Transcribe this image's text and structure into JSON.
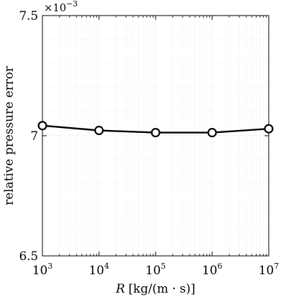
{
  "chart_data": {
    "type": "line",
    "title": "",
    "xlabel_var": "R",
    "xlabel_unit": "[kg/(m · s)]",
    "ylabel": "relative pressure error",
    "x_scale": "log",
    "xlim": [
      1000,
      10000000
    ],
    "ylim": [
      6.5,
      7.5
    ],
    "y_multiplier_base": "×10",
    "y_multiplier_exp": "−3",
    "grid": true,
    "minor_grid": true,
    "x_ticks": [
      {
        "value": 1000,
        "base": "10",
        "exp": "3"
      },
      {
        "value": 10000,
        "base": "10",
        "exp": "4"
      },
      {
        "value": 100000,
        "base": "10",
        "exp": "5"
      },
      {
        "value": 1000000,
        "base": "10",
        "exp": "6"
      },
      {
        "value": 10000000,
        "base": "10",
        "exp": "7"
      }
    ],
    "y_ticks": [
      {
        "value": 6.5,
        "label": "6.5"
      },
      {
        "value": 7.0,
        "label": "7"
      },
      {
        "value": 7.5,
        "label": "7.5"
      }
    ],
    "series": [
      {
        "marker": "circle",
        "color": "#000000",
        "x": [
          1000,
          10000,
          100000,
          1000000,
          10000000
        ],
        "y": [
          7.042,
          7.022,
          7.013,
          7.013,
          7.029
        ]
      }
    ]
  }
}
